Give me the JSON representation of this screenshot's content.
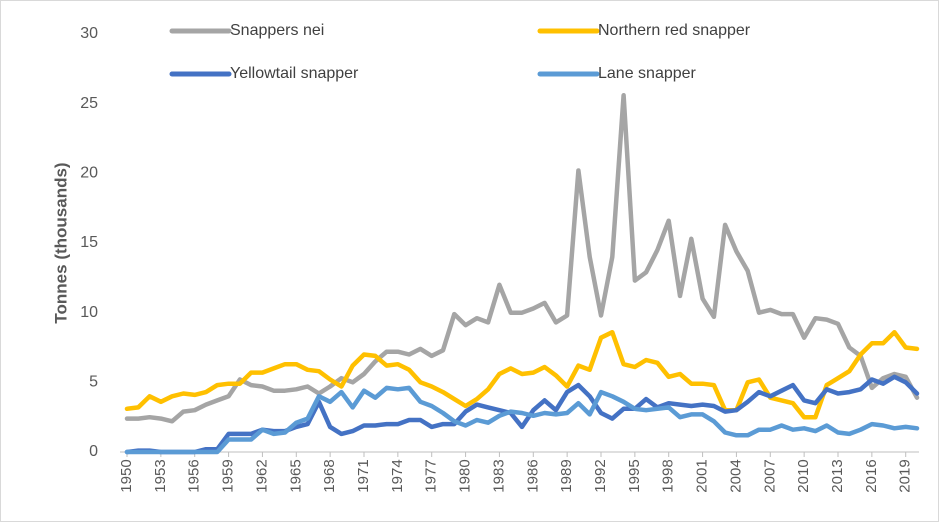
{
  "chart_data": {
    "type": "line",
    "y_label": "Tonnes (thousands)",
    "x": [
      1950,
      1951,
      1952,
      1953,
      1954,
      1955,
      1956,
      1957,
      1958,
      1959,
      1960,
      1961,
      1962,
      1963,
      1964,
      1965,
      1966,
      1967,
      1968,
      1969,
      1970,
      1971,
      1972,
      1973,
      1974,
      1975,
      1976,
      1977,
      1978,
      1979,
      1980,
      1981,
      1982,
      1983,
      1984,
      1985,
      1986,
      1987,
      1988,
      1989,
      1990,
      1991,
      1992,
      1993,
      1994,
      1995,
      1996,
      1997,
      1998,
      1999,
      2000,
      2001,
      2002,
      2003,
      2004,
      2005,
      2006,
      2007,
      2008,
      2009,
      2010,
      2011,
      2012,
      2013,
      2014,
      2015,
      2016,
      2017,
      2018,
      2019,
      2020
    ],
    "xlim": [
      1950,
      2020
    ],
    "xticks": [
      1950,
      1953,
      1956,
      1959,
      1962,
      1965,
      1968,
      1971,
      1974,
      1977,
      1980,
      1983,
      1986,
      1989,
      1992,
      1995,
      1998,
      2001,
      2004,
      2007,
      2010,
      2013,
      2016,
      2019
    ],
    "ylim": [
      0,
      30
    ],
    "yticks": [
      0,
      5,
      10,
      15,
      20,
      25,
      30
    ],
    "series": [
      {
        "name": "Snappers nei",
        "color": "#a5a5a5",
        "values": [
          2.4,
          2.4,
          2.5,
          2.4,
          2.2,
          2.9,
          3.0,
          3.4,
          3.7,
          4.0,
          5.2,
          4.8,
          4.7,
          4.4,
          4.4,
          4.5,
          4.7,
          4.2,
          4.7,
          5.3,
          5.0,
          5.6,
          6.5,
          7.2,
          7.2,
          7.0,
          7.4,
          6.9,
          7.3,
          9.9,
          9.1,
          9.6,
          9.3,
          12.0,
          10.0,
          10.0,
          10.3,
          10.7,
          9.3,
          9.8,
          20.2,
          14.0,
          9.8,
          14.0,
          25.6,
          12.3,
          12.9,
          14.5,
          16.6,
          11.2,
          15.3,
          11.0,
          9.7,
          16.3,
          14.4,
          13.0,
          10.0,
          10.2,
          9.9,
          9.9,
          8.2,
          9.6,
          9.5,
          9.2,
          7.5,
          6.9,
          4.6,
          5.3,
          5.6,
          5.4,
          3.9
        ]
      },
      {
        "name": "Northern red snapper",
        "color": "#ffc000",
        "values": [
          3.1,
          3.2,
          4.0,
          3.6,
          4.0,
          4.2,
          4.1,
          4.3,
          4.8,
          4.9,
          4.9,
          5.7,
          5.7,
          6.0,
          6.3,
          6.3,
          5.9,
          5.8,
          5.2,
          4.7,
          6.2,
          7.0,
          6.9,
          6.2,
          6.3,
          5.9,
          5.0,
          4.7,
          4.3,
          3.8,
          3.3,
          3.8,
          4.5,
          5.6,
          6.0,
          5.6,
          5.7,
          6.1,
          5.5,
          4.7,
          6.2,
          5.9,
          8.2,
          8.6,
          6.3,
          6.1,
          6.6,
          6.4,
          5.4,
          5.6,
          4.9,
          4.9,
          4.8,
          3.0,
          3.0,
          5.0,
          5.2,
          3.9,
          3.7,
          3.5,
          2.5,
          2.5,
          4.8,
          5.3,
          5.8,
          7.0,
          7.8,
          7.8,
          8.6,
          7.5,
          7.4
        ]
      },
      {
        "name": "Yellowtail snapper",
        "color": "#4472c4",
        "values": [
          0.0,
          0.1,
          0.1,
          0.0,
          0.0,
          0.0,
          0.0,
          0.2,
          0.2,
          1.3,
          1.3,
          1.3,
          1.6,
          1.5,
          1.5,
          1.8,
          2.0,
          3.6,
          1.8,
          1.3,
          1.5,
          1.9,
          1.9,
          2.0,
          2.0,
          2.3,
          2.3,
          1.8,
          2.0,
          2.0,
          2.9,
          3.4,
          3.2,
          3.0,
          2.8,
          1.8,
          3.0,
          3.7,
          3.0,
          4.3,
          4.8,
          4.0,
          2.8,
          2.4,
          3.1,
          3.1,
          3.8,
          3.2,
          3.5,
          3.4,
          3.3,
          3.4,
          3.3,
          2.9,
          3.0,
          3.6,
          4.3,
          4.0,
          4.4,
          4.8,
          3.7,
          3.5,
          4.5,
          4.2,
          4.3,
          4.5,
          5.2,
          4.9,
          5.4,
          5.0,
          4.2
        ]
      },
      {
        "name": "Lane snapper",
        "color": "#5b9bd5",
        "values": [
          0.0,
          0.0,
          0.0,
          0.0,
          0.0,
          0.0,
          0.0,
          0.0,
          0.0,
          0.9,
          0.9,
          0.9,
          1.6,
          1.3,
          1.4,
          2.1,
          2.4,
          4.0,
          3.6,
          4.3,
          3.2,
          4.4,
          3.9,
          4.6,
          4.5,
          4.6,
          3.6,
          3.3,
          2.8,
          2.2,
          1.9,
          2.3,
          2.1,
          2.6,
          2.9,
          2.8,
          2.6,
          2.8,
          2.7,
          2.8,
          3.5,
          2.7,
          4.3,
          4.0,
          3.6,
          3.1,
          3.0,
          3.1,
          3.2,
          2.5,
          2.7,
          2.7,
          2.2,
          1.4,
          1.2,
          1.2,
          1.6,
          1.6,
          1.9,
          1.6,
          1.7,
          1.5,
          1.9,
          1.4,
          1.3,
          1.6,
          2.0,
          1.9,
          1.7,
          1.8,
          1.7
        ]
      }
    ]
  }
}
